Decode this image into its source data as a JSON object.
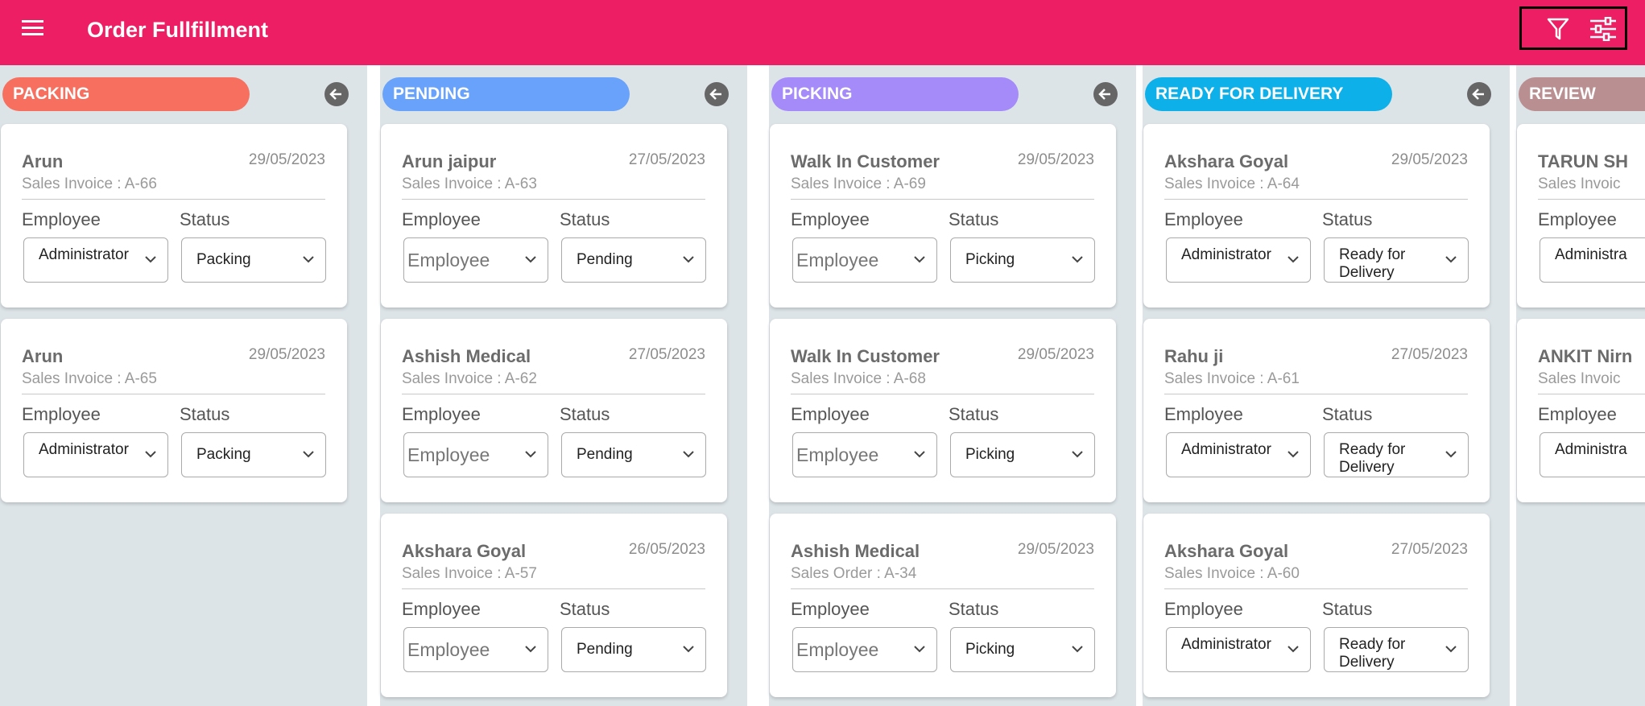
{
  "header": {
    "title": "Order Fullfillment"
  },
  "labels": {
    "employee": "Employee",
    "status": "Status"
  },
  "columns": [
    {
      "title": "PACKING",
      "color": "#f7705f",
      "cards": [
        {
          "name": "Arun",
          "date": "29/05/2023",
          "doc": "Sales Invoice : A-66",
          "employee": "Administrator",
          "status": "Packing",
          "placeholder": false
        },
        {
          "name": "Arun",
          "date": "29/05/2023",
          "doc": "Sales Invoice : A-65",
          "employee": "Administrator",
          "status": "Packing",
          "placeholder": false
        }
      ]
    },
    {
      "title": "PENDING",
      "color": "#68a2fb",
      "cards": [
        {
          "name": "Arun jaipur",
          "date": "27/05/2023",
          "doc": "Sales Invoice : A-63",
          "employee": "Employee",
          "status": "Pending",
          "placeholder": true
        },
        {
          "name": "Ashish Medical",
          "date": "27/05/2023",
          "doc": "Sales Invoice : A-62",
          "employee": "Employee",
          "status": "Pending",
          "placeholder": true
        },
        {
          "name": "Akshara Goyal",
          "date": "26/05/2023",
          "doc": "Sales Invoice : A-57",
          "employee": "Employee",
          "status": "Pending",
          "placeholder": true
        }
      ]
    },
    {
      "title": "PICKING",
      "color": "#a58bfa",
      "cards": [
        {
          "name": "Walk In Customer",
          "date": "29/05/2023",
          "doc": "Sales Invoice : A-69",
          "employee": "Employee",
          "status": "Picking",
          "placeholder": true
        },
        {
          "name": "Walk In Customer",
          "date": "29/05/2023",
          "doc": "Sales Invoice : A-68",
          "employee": "Employee",
          "status": "Picking",
          "placeholder": true
        },
        {
          "name": "Ashish Medical",
          "date": "29/05/2023",
          "doc": "Sales Order : A-34",
          "employee": "Employee",
          "status": "Picking",
          "placeholder": true
        }
      ]
    },
    {
      "title": "READY FOR DELIVERY",
      "color": "#0eb0e9",
      "cards": [
        {
          "name": "Akshara Goyal",
          "date": "29/05/2023",
          "doc": "Sales Invoice : A-64",
          "employee": "Administrator",
          "status": "Ready for Delivery",
          "placeholder": false
        },
        {
          "name": "Rahu ji",
          "date": "27/05/2023",
          "doc": "Sales Invoice : A-61",
          "employee": "Administrator",
          "status": "Ready for Delivery",
          "placeholder": false
        },
        {
          "name": "Akshara Goyal",
          "date": "27/05/2023",
          "doc": "Sales Invoice : A-60",
          "employee": "Administrator",
          "status": "Ready for Delivery",
          "placeholder": false
        }
      ]
    },
    {
      "title": "REVIEW",
      "color": "#b98f91",
      "cards": [
        {
          "name": "TARUN SH",
          "date": "",
          "doc": "Sales Invoic",
          "employee": "Administra",
          "status": "",
          "placeholder": false
        },
        {
          "name": "ANKIT Nirn",
          "date": "",
          "doc": "Sales Invoic",
          "employee": "Administra",
          "status": "",
          "placeholder": false
        }
      ]
    }
  ]
}
